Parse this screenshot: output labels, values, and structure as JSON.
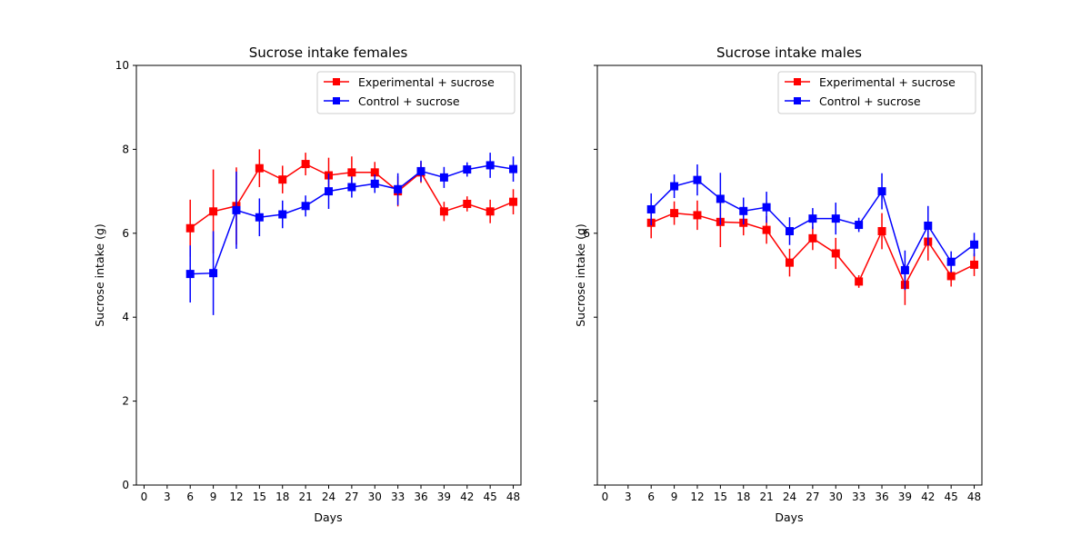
{
  "chart_data": [
    {
      "type": "line",
      "title": "Sucrose intake females",
      "xlabel": "Days",
      "ylabel": "Sucrose intake (g)",
      "xlim": [
        -1,
        49
      ],
      "ylim": [
        0,
        10
      ],
      "xticks": [
        0,
        3,
        6,
        9,
        12,
        15,
        18,
        21,
        24,
        27,
        30,
        33,
        36,
        39,
        42,
        45,
        48
      ],
      "yticks": [
        0,
        2,
        4,
        6,
        8,
        10
      ],
      "grid": false,
      "legend": "top-right",
      "series": [
        {
          "name": "Experimental + sucrose",
          "color": "#ff0000",
          "x": [
            6,
            9,
            12,
            15,
            18,
            21,
            24,
            27,
            30,
            33,
            36,
            39,
            42,
            45,
            48
          ],
          "y": [
            6.12,
            6.52,
            6.65,
            7.55,
            7.28,
            7.65,
            7.38,
            7.45,
            7.45,
            7.0,
            7.45,
            6.52,
            6.7,
            6.52,
            6.75
          ],
          "err": [
            0.68,
            1.0,
            0.92,
            0.45,
            0.33,
            0.27,
            0.42,
            0.38,
            0.25,
            0.36,
            0.25,
            0.23,
            0.18,
            0.28,
            0.3
          ]
        },
        {
          "name": "Control + sucrose",
          "color": "#0000ff",
          "x": [
            6,
            9,
            12,
            15,
            18,
            21,
            24,
            27,
            30,
            33,
            36,
            39,
            42,
            45,
            48
          ],
          "y": [
            5.03,
            5.05,
            6.55,
            6.38,
            6.45,
            6.65,
            7.0,
            7.1,
            7.18,
            7.05,
            7.48,
            7.33,
            7.52,
            7.62,
            7.53
          ],
          "err": [
            0.68,
            1.0,
            0.92,
            0.45,
            0.33,
            0.25,
            0.42,
            0.25,
            0.22,
            0.38,
            0.25,
            0.25,
            0.17,
            0.3,
            0.3
          ]
        }
      ]
    },
    {
      "type": "line",
      "title": "Sucrose intake males",
      "xlabel": "Days",
      "ylabel": "Sucrose intake (g)",
      "xlim": [
        -1,
        49
      ],
      "ylim": [
        0,
        10
      ],
      "xticks": [
        0,
        3,
        6,
        9,
        12,
        15,
        18,
        21,
        24,
        27,
        30,
        33,
        36,
        39,
        42,
        45,
        48
      ],
      "yticks": [
        0,
        2,
        4,
        6,
        8,
        10
      ],
      "show_ytick_labels": [
        false,
        false,
        false,
        true,
        false,
        false
      ],
      "grid": false,
      "legend": "top-right",
      "series": [
        {
          "name": "Experimental + sucrose",
          "color": "#ff0000",
          "x": [
            6,
            9,
            12,
            15,
            18,
            21,
            24,
            27,
            30,
            33,
            36,
            39,
            42,
            45,
            48
          ],
          "y": [
            6.25,
            6.48,
            6.43,
            6.27,
            6.25,
            6.08,
            5.3,
            5.88,
            5.52,
            4.85,
            6.05,
            4.77,
            5.8,
            4.98,
            5.25
          ],
          "err": [
            0.37,
            0.28,
            0.35,
            0.6,
            0.3,
            0.33,
            0.33,
            0.28,
            0.37,
            0.15,
            0.43,
            0.48,
            0.45,
            0.25,
            0.27
          ]
        },
        {
          "name": "Control + sucrose",
          "color": "#0000ff",
          "x": [
            6,
            9,
            12,
            15,
            18,
            21,
            24,
            27,
            30,
            33,
            36,
            39,
            42,
            45,
            48
          ],
          "y": [
            6.57,
            7.12,
            7.27,
            6.82,
            6.53,
            6.62,
            6.05,
            6.35,
            6.35,
            6.2,
            7.0,
            5.12,
            6.18,
            5.32,
            5.73
          ],
          "err": [
            0.38,
            0.28,
            0.37,
            0.62,
            0.32,
            0.37,
            0.33,
            0.25,
            0.38,
            0.17,
            0.43,
            0.47,
            0.47,
            0.25,
            0.28
          ]
        }
      ]
    }
  ]
}
